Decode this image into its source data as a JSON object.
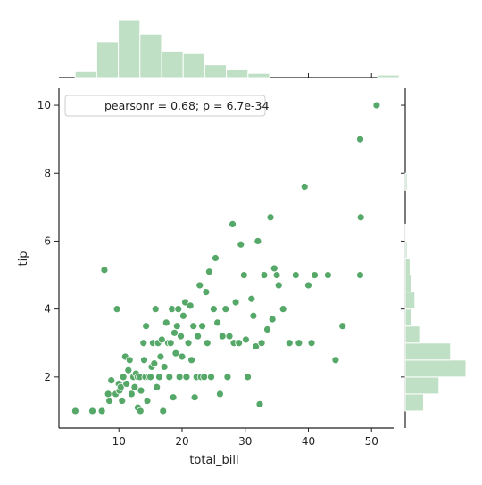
{
  "chart_data": {
    "type": "scatter",
    "title": "",
    "xlabel": "total_bill",
    "ylabel": "tip",
    "xlim": [
      0.5,
      53.5
    ],
    "ylim": [
      0.5,
      10.5
    ],
    "xticks": [
      10,
      20,
      30,
      40,
      50
    ],
    "yticks": [
      2,
      4,
      6,
      8,
      10
    ],
    "grid": false,
    "annotation": "pearsonr = 0.68; p = 6.7e-34",
    "annotation_placement": "top-left",
    "colors": {
      "point": "#55a868",
      "point_edge": "#ffffff",
      "hist_fill": "#bfe0c5",
      "hist_edge": "#ffffff",
      "axis": "#222222"
    },
    "points": [
      [
        3.1,
        1.0
      ],
      [
        5.8,
        1.0
      ],
      [
        7.3,
        1.0
      ],
      [
        7.7,
        5.15
      ],
      [
        8.3,
        1.5
      ],
      [
        8.5,
        1.3
      ],
      [
        8.8,
        1.9
      ],
      [
        9.5,
        1.5
      ],
      [
        9.7,
        4.0
      ],
      [
        10.0,
        1.8
      ],
      [
        10.1,
        1.6
      ],
      [
        10.3,
        1.7
      ],
      [
        10.5,
        1.3
      ],
      [
        10.7,
        2.0
      ],
      [
        11.0,
        2.6
      ],
      [
        11.2,
        1.8
      ],
      [
        11.5,
        2.2
      ],
      [
        11.7,
        2.5
      ],
      [
        12.0,
        1.5
      ],
      [
        12.3,
        2.0
      ],
      [
        12.5,
        1.7
      ],
      [
        12.7,
        2.1
      ],
      [
        13.0,
        2.0
      ],
      [
        13.3,
        2.0
      ],
      [
        13.5,
        1.6
      ],
      [
        13.0,
        1.1
      ],
      [
        13.4,
        1.0
      ],
      [
        13.9,
        3.0
      ],
      [
        14.0,
        2.5
      ],
      [
        14.2,
        2.0
      ],
      [
        14.5,
        1.3
      ],
      [
        14.7,
        2.0
      ],
      [
        14.3,
        3.5
      ],
      [
        15.0,
        2.0
      ],
      [
        15.2,
        2.3
      ],
      [
        15.4,
        3.0
      ],
      [
        15.6,
        2.4
      ],
      [
        15.8,
        4.0
      ],
      [
        16.0,
        1.7
      ],
      [
        16.2,
        3.0
      ],
      [
        16.4,
        2.0
      ],
      [
        16.6,
        2.6
      ],
      [
        16.8,
        3.1
      ],
      [
        17.0,
        1.0
      ],
      [
        17.2,
        2.3
      ],
      [
        17.5,
        3.6
      ],
      [
        17.8,
        3.0
      ],
      [
        18.0,
        2.0
      ],
      [
        18.2,
        3.0
      ],
      [
        18.4,
        4.0
      ],
      [
        18.6,
        1.4
      ],
      [
        18.8,
        3.3
      ],
      [
        19.0,
        2.7
      ],
      [
        19.2,
        3.5
      ],
      [
        19.4,
        4.0
      ],
      [
        19.6,
        2.0
      ],
      [
        19.8,
        3.2
      ],
      [
        20.0,
        2.6
      ],
      [
        20.2,
        3.8
      ],
      [
        20.5,
        4.2
      ],
      [
        20.7,
        2.0
      ],
      [
        21.0,
        3.0
      ],
      [
        21.3,
        4.1
      ],
      [
        21.5,
        2.5
      ],
      [
        21.8,
        3.5
      ],
      [
        22.0,
        1.4
      ],
      [
        22.3,
        2.0
      ],
      [
        22.5,
        3.2
      ],
      [
        22.8,
        4.7
      ],
      [
        23.0,
        2.0
      ],
      [
        23.2,
        3.5
      ],
      [
        23.5,
        2.0
      ],
      [
        23.8,
        4.5
      ],
      [
        24.0,
        3.0
      ],
      [
        24.3,
        5.1
      ],
      [
        24.6,
        2.0
      ],
      [
        25.0,
        4.0
      ],
      [
        25.3,
        5.5
      ],
      [
        25.6,
        3.6
      ],
      [
        26.0,
        1.5
      ],
      [
        26.4,
        3.2
      ],
      [
        26.9,
        4.0
      ],
      [
        27.2,
        2.0
      ],
      [
        27.5,
        3.2
      ],
      [
        28.0,
        6.5
      ],
      [
        28.2,
        3.0
      ],
      [
        28.5,
        4.2
      ],
      [
        29.0,
        3.0
      ],
      [
        29.3,
        5.9
      ],
      [
        29.8,
        5.0
      ],
      [
        30.1,
        3.1
      ],
      [
        30.4,
        2.0
      ],
      [
        31.0,
        4.3
      ],
      [
        31.3,
        3.8
      ],
      [
        31.7,
        2.9
      ],
      [
        32.0,
        6.0
      ],
      [
        32.3,
        1.2
      ],
      [
        32.6,
        3.0
      ],
      [
        33.0,
        5.0
      ],
      [
        33.5,
        3.4
      ],
      [
        34.0,
        6.7
      ],
      [
        34.3,
        3.7
      ],
      [
        34.6,
        5.2
      ],
      [
        35.0,
        5.0
      ],
      [
        35.3,
        4.7
      ],
      [
        36.0,
        4.0
      ],
      [
        37.0,
        3.0
      ],
      [
        38.0,
        5.0
      ],
      [
        38.5,
        3.0
      ],
      [
        39.4,
        7.6
      ],
      [
        40.0,
        4.7
      ],
      [
        40.5,
        3.0
      ],
      [
        41.0,
        5.0
      ],
      [
        43.1,
        5.0
      ],
      [
        44.3,
        2.5
      ],
      [
        45.4,
        3.5
      ],
      [
        48.2,
        9.0
      ],
      [
        48.3,
        6.7
      ],
      [
        48.2,
        5.0
      ],
      [
        50.8,
        10.0
      ]
    ],
    "top_histogram": {
      "bins_from": 3.07,
      "bin_width": 3.42,
      "counts": [
        7,
        42,
        68,
        51,
        31,
        28,
        15,
        10,
        5,
        0,
        0,
        0,
        0,
        0,
        3
      ]
    },
    "right_histogram": {
      "bins_from": 1.0,
      "bin_width": 0.5,
      "counts": [
        19,
        35,
        63,
        47,
        15,
        7,
        10,
        6,
        5,
        2,
        1,
        0,
        0,
        2
      ]
    }
  }
}
